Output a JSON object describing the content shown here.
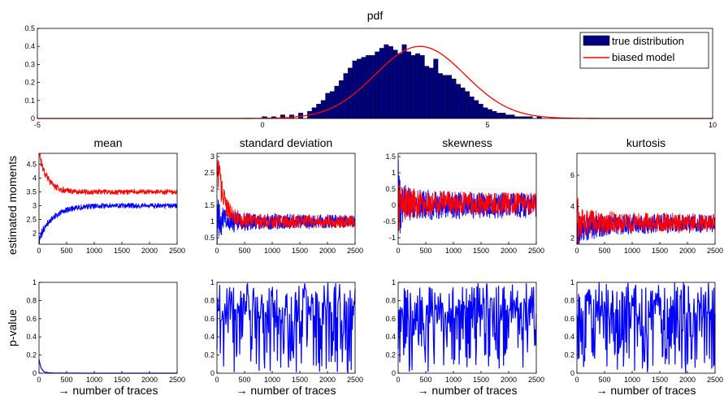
{
  "colors": {
    "blue": "#0000ff",
    "navy": "#00007f",
    "red": "#ff0000"
  },
  "chart_data": [
    {
      "type": "bar",
      "title": "pdf",
      "xlim": [
        -5,
        10
      ],
      "ylim": [
        0,
        0.5
      ],
      "xticks": [
        "-5",
        "0",
        "5",
        "10"
      ],
      "yticks": [
        "0",
        "0.1",
        "0.2",
        "0.3",
        "0.4",
        "0.5"
      ],
      "legend": {
        "placement": "top-right",
        "entries": [
          "true distribution",
          "biased model"
        ]
      },
      "series": [
        {
          "name": "true distribution",
          "kind": "histogram",
          "bin_width": 0.1,
          "x": [
            0.05,
            0.25,
            0.45,
            0.65,
            0.85,
            1.05,
            1.15,
            1.25,
            1.35,
            1.45,
            1.55,
            1.65,
            1.75,
            1.85,
            1.95,
            2.05,
            2.15,
            2.25,
            2.35,
            2.45,
            2.55,
            2.65,
            2.75,
            2.85,
            2.95,
            3.05,
            3.15,
            3.25,
            3.35,
            3.45,
            3.55,
            3.65,
            3.75,
            3.85,
            3.95,
            4.05,
            4.15,
            4.25,
            4.35,
            4.45,
            4.55,
            4.65,
            4.75,
            4.85,
            4.95,
            5.05,
            5.15,
            5.25,
            5.35,
            5.45,
            5.55,
            5.65,
            5.75,
            5.85,
            5.95,
            6.15
          ],
          "values": [
            0.01,
            0.01,
            0.02,
            0.02,
            0.03,
            0.04,
            0.06,
            0.08,
            0.1,
            0.14,
            0.15,
            0.18,
            0.21,
            0.25,
            0.28,
            0.32,
            0.33,
            0.34,
            0.35,
            0.35,
            0.37,
            0.39,
            0.41,
            0.4,
            0.38,
            0.36,
            0.41,
            0.37,
            0.35,
            0.36,
            0.35,
            0.29,
            0.28,
            0.33,
            0.25,
            0.24,
            0.24,
            0.22,
            0.19,
            0.17,
            0.15,
            0.12,
            0.1,
            0.08,
            0.06,
            0.05,
            0.04,
            0.03,
            0.03,
            0.02,
            0.02,
            0.01,
            0.01,
            0.01,
            0.01,
            0.01
          ]
        },
        {
          "name": "biased model",
          "kind": "gaussian",
          "mu": 3.5,
          "sigma": 1.0,
          "peak": 0.4
        }
      ]
    },
    {
      "type": "line",
      "title": "mean",
      "ylabel": "estimated moments",
      "xlim": [
        0,
        2500
      ],
      "ylim": [
        1.6,
        4.9
      ],
      "xticks": [
        "0",
        "500",
        "1000",
        "1500",
        "2000",
        "2500"
      ],
      "yticks": [
        "2",
        "2.5",
        "3",
        "3.5",
        "4",
        "4.5"
      ],
      "series": [
        {
          "color": "blue",
          "start": 1.8,
          "converge": 3.0,
          "decay": 250,
          "spread": 0.22,
          "noise": 0.08,
          "seed": 11
        },
        {
          "color": "red",
          "start": 4.9,
          "converge": 3.5,
          "decay": 150,
          "spread": 0.3,
          "noise": 0.07,
          "seed": 23
        }
      ]
    },
    {
      "type": "line",
      "title": "standard deviation",
      "xlim": [
        0,
        2500
      ],
      "ylim": [
        0.3,
        3.1
      ],
      "xticks": [
        "0",
        "500",
        "1000",
        "1500",
        "2000",
        "2500"
      ],
      "yticks": [
        "0.5",
        "1",
        "1.5",
        "2",
        "2.5",
        "3"
      ],
      "series": [
        {
          "color": "blue",
          "start": 1.0,
          "converge": 1.0,
          "decay": 200,
          "spread": 1.1,
          "noise": 0.15,
          "seed": 31
        },
        {
          "color": "red",
          "start": 2.9,
          "converge": 1.0,
          "decay": 120,
          "spread": 0.9,
          "noise": 0.14,
          "seed": 37
        }
      ]
    },
    {
      "type": "line",
      "title": "skewness",
      "xlim": [
        0,
        2500
      ],
      "ylim": [
        -1.2,
        1.6
      ],
      "xticks": [
        "0",
        "500",
        "1000",
        "1500",
        "2000",
        "2500"
      ],
      "yticks": [
        "-1",
        "-0.5",
        "0",
        "0.5",
        "1",
        "1.5"
      ],
      "series": [
        {
          "color": "blue",
          "start": 0.0,
          "converge": 0.0,
          "decay": 300,
          "spread": 1.3,
          "noise": 0.32,
          "seed": 41
        },
        {
          "color": "red",
          "start": 0.1,
          "converge": 0.05,
          "decay": 300,
          "spread": 1.1,
          "noise": 0.28,
          "seed": 43
        }
      ]
    },
    {
      "type": "line",
      "title": "kurtosis",
      "xlim": [
        0,
        2500
      ],
      "ylim": [
        1.6,
        7.4
      ],
      "xticks": [
        "0",
        "500",
        "1000",
        "1500",
        "2000",
        "2500"
      ],
      "yticks": [
        "2",
        "4",
        "6"
      ],
      "series": [
        {
          "color": "blue",
          "start": 2.4,
          "converge": 2.9,
          "decay": 300,
          "spread": 2.4,
          "noise": 0.45,
          "seed": 53
        },
        {
          "color": "red",
          "start": 3.0,
          "converge": 3.0,
          "decay": 300,
          "spread": 2.2,
          "noise": 0.45,
          "seed": 59
        }
      ]
    },
    {
      "type": "line",
      "ylabel": "p-value",
      "xlabel": "→ number of traces",
      "xlim": [
        0,
        2500
      ],
      "ylim": [
        0,
        1
      ],
      "xticks": [
        "0",
        "500",
        "1000",
        "1500",
        "2000",
        "2500"
      ],
      "yticks": [
        "0",
        "0.2",
        "0.4",
        "0.6",
        "0.8",
        "1"
      ],
      "series": [
        {
          "color": "blue",
          "pattern": "decay",
          "start": 0.15,
          "decay": 40,
          "seed": 61
        }
      ]
    },
    {
      "type": "line",
      "xlabel": "→ number of traces",
      "xlim": [
        0,
        2500
      ],
      "ylim": [
        0,
        1
      ],
      "xticks": [
        "0",
        "500",
        "1000",
        "1500",
        "2000",
        "2500"
      ],
      "yticks": [
        "0",
        "0.2",
        "0.4",
        "0.6",
        "0.8",
        "1"
      ],
      "series": [
        {
          "color": "blue",
          "pattern": "random",
          "seed": 71
        }
      ]
    },
    {
      "type": "line",
      "xlabel": "→ number of traces",
      "xlim": [
        0,
        2500
      ],
      "ylim": [
        0,
        1
      ],
      "xticks": [
        "0",
        "500",
        "1000",
        "1500",
        "2000",
        "2500"
      ],
      "yticks": [
        "0",
        "0.2",
        "0.4",
        "0.6",
        "0.8",
        "1"
      ],
      "series": [
        {
          "color": "blue",
          "pattern": "random",
          "seed": 83
        }
      ]
    },
    {
      "type": "line",
      "xlabel": "→ number of traces",
      "xlim": [
        0,
        2500
      ],
      "ylim": [
        0,
        1
      ],
      "xticks": [
        "0",
        "500",
        "1000",
        "1500",
        "2000",
        "2500"
      ],
      "yticks": [
        "0",
        "0.2",
        "0.4",
        "0.6",
        "0.8",
        "1"
      ],
      "series": [
        {
          "color": "blue",
          "pattern": "random",
          "seed": 97
        }
      ]
    }
  ]
}
